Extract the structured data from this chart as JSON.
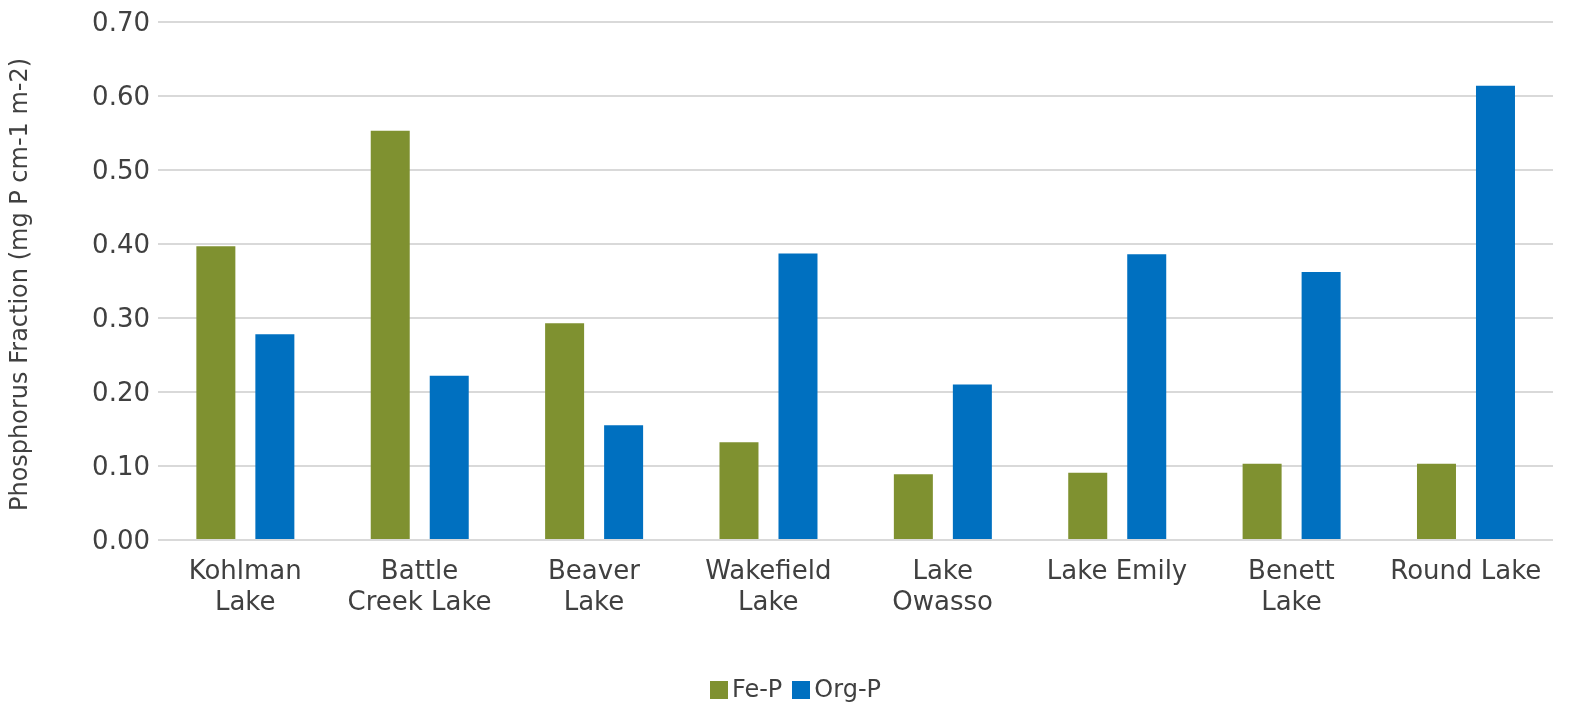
{
  "chart_data": {
    "type": "bar",
    "ylabel": "Phosphorus Fraction (mg P cm-1 m-2)",
    "categories": [
      "Kohlman Lake",
      "Battle Creek Lake",
      "Beaver Lake",
      "Wakefield Lake",
      "Lake Owasso",
      "Lake Emily",
      "Benett Lake",
      "Round Lake"
    ],
    "series": [
      {
        "name": "Fe-P",
        "color": "#7f9130",
        "values": [
          0.397,
          0.553,
          0.293,
          0.132,
          0.089,
          0.091,
          0.103,
          0.103
        ]
      },
      {
        "name": "Org-P",
        "color": "#0070c0",
        "values": [
          0.278,
          0.222,
          0.155,
          0.387,
          0.21,
          0.386,
          0.362,
          0.614
        ]
      }
    ],
    "ylim": [
      0,
      0.7
    ],
    "yticks": [
      {
        "value": 0,
        "label": "0.00"
      },
      {
        "value": 0.1,
        "label": "0.10"
      },
      {
        "value": 0.2,
        "label": "0.20"
      },
      {
        "value": 0.3,
        "label": "0.30"
      },
      {
        "value": 0.4,
        "label": "0.40"
      },
      {
        "value": 0.5,
        "label": "0.50"
      },
      {
        "value": 0.6,
        "label": "0.60"
      },
      {
        "value": 0.7,
        "label": "0.70"
      }
    ],
    "grid": "y",
    "legend": "bottom"
  }
}
